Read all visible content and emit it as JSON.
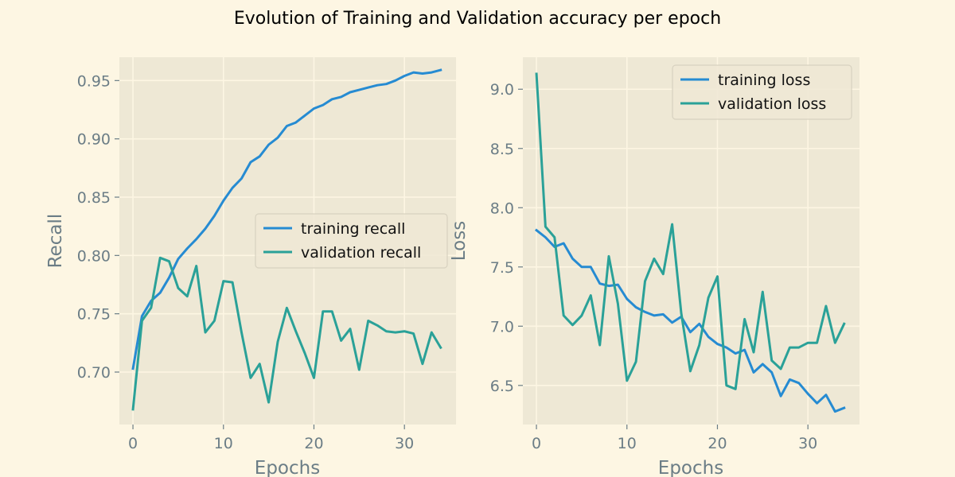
{
  "figure": {
    "title": "Evolution of Training and Validation accuracy per epoch"
  },
  "colors": {
    "figure_bg": "#fdf6e3",
    "axes_bg": "#eee8d5",
    "grid": "#fdf6e3",
    "text": "#6b7d86",
    "blue": "#268bd2",
    "teal": "#2aa198"
  },
  "chart_data": [
    {
      "type": "line",
      "xlabel": "Epochs",
      "ylabel": "Recall",
      "xlim": [
        -1.5,
        35.7
      ],
      "ylim": [
        0.655,
        0.97
      ],
      "xticks": [
        0,
        10,
        20,
        30
      ],
      "yticks": [
        0.7,
        0.75,
        0.8,
        0.85,
        0.9,
        0.95
      ],
      "ytick_labels": [
        "0.70",
        "0.75",
        "0.80",
        "0.85",
        "0.90",
        "0.95"
      ],
      "grid": true,
      "legend_loc": "center right",
      "series": [
        {
          "name": "training recall",
          "color": "#268bd2",
          "x": [
            0,
            1,
            2,
            3,
            4,
            5,
            6,
            7,
            8,
            9,
            10,
            11,
            12,
            13,
            14,
            15,
            16,
            17,
            18,
            19,
            20,
            21,
            22,
            23,
            24,
            25,
            26,
            27,
            28,
            29,
            30,
            31,
            32,
            33,
            34
          ],
          "values": [
            0.703,
            0.748,
            0.761,
            0.768,
            0.781,
            0.797,
            0.806,
            0.814,
            0.823,
            0.834,
            0.847,
            0.858,
            0.866,
            0.88,
            0.885,
            0.895,
            0.901,
            0.911,
            0.914,
            0.92,
            0.926,
            0.929,
            0.934,
            0.936,
            0.94,
            0.942,
            0.944,
            0.946,
            0.947,
            0.95,
            0.954,
            0.957,
            0.956,
            0.957,
            0.959
          ]
        },
        {
          "name": "validation recall",
          "color": "#2aa198",
          "x": [
            0,
            1,
            2,
            3,
            4,
            5,
            6,
            7,
            8,
            9,
            10,
            11,
            12,
            13,
            14,
            15,
            16,
            17,
            18,
            19,
            20,
            21,
            22,
            23,
            24,
            25,
            26,
            27,
            28,
            29,
            30,
            31,
            32,
            33,
            34
          ],
          "values": [
            0.668,
            0.744,
            0.755,
            0.798,
            0.795,
            0.772,
            0.765,
            0.791,
            0.734,
            0.744,
            0.778,
            0.777,
            0.734,
            0.695,
            0.707,
            0.674,
            0.726,
            0.755,
            0.735,
            0.716,
            0.695,
            0.752,
            0.752,
            0.727,
            0.737,
            0.702,
            0.744,
            0.74,
            0.735,
            0.734,
            0.735,
            0.733,
            0.707,
            0.734,
            0.721
          ]
        }
      ]
    },
    {
      "type": "line",
      "xlabel": "Epochs",
      "ylabel": "Loss",
      "xlim": [
        -1.5,
        35.7
      ],
      "ylim": [
        6.17,
        9.27
      ],
      "xticks": [
        0,
        10,
        20,
        30
      ],
      "yticks": [
        6.5,
        7.0,
        7.5,
        8.0,
        8.5,
        9.0
      ],
      "ytick_labels": [
        "6.5",
        "7.0",
        "7.5",
        "8.0",
        "8.5",
        "9.0"
      ],
      "grid": true,
      "legend_loc": "upper right",
      "series": [
        {
          "name": "training loss",
          "color": "#268bd2",
          "x": [
            0,
            1,
            2,
            3,
            4,
            5,
            6,
            7,
            8,
            9,
            10,
            11,
            12,
            13,
            14,
            15,
            16,
            17,
            18,
            19,
            20,
            21,
            22,
            23,
            24,
            25,
            26,
            27,
            28,
            29,
            30,
            31,
            32,
            33,
            34
          ],
          "values": [
            7.81,
            7.75,
            7.67,
            7.7,
            7.57,
            7.5,
            7.5,
            7.36,
            7.34,
            7.35,
            7.23,
            7.16,
            7.12,
            7.09,
            7.1,
            7.03,
            7.08,
            6.95,
            7.02,
            6.91,
            6.85,
            6.82,
            6.77,
            6.8,
            6.61,
            6.68,
            6.61,
            6.41,
            6.55,
            6.52,
            6.43,
            6.35,
            6.42,
            6.28,
            6.31
          ]
        },
        {
          "name": "validation loss",
          "color": "#2aa198",
          "x": [
            0,
            1,
            2,
            3,
            4,
            5,
            6,
            7,
            8,
            9,
            10,
            11,
            12,
            13,
            14,
            15,
            16,
            17,
            18,
            19,
            20,
            21,
            22,
            23,
            24,
            25,
            26,
            27,
            28,
            29,
            30,
            31,
            32,
            33,
            34
          ],
          "values": [
            9.13,
            7.84,
            7.75,
            7.09,
            7.01,
            7.09,
            7.26,
            6.84,
            7.59,
            7.19,
            6.54,
            6.7,
            7.38,
            7.57,
            7.44,
            7.86,
            7.11,
            6.62,
            6.84,
            7.24,
            7.42,
            6.5,
            6.47,
            7.06,
            6.78,
            7.29,
            6.71,
            6.64,
            6.82,
            6.82,
            6.86,
            6.86,
            7.17,
            6.86,
            7.02
          ]
        }
      ]
    }
  ]
}
